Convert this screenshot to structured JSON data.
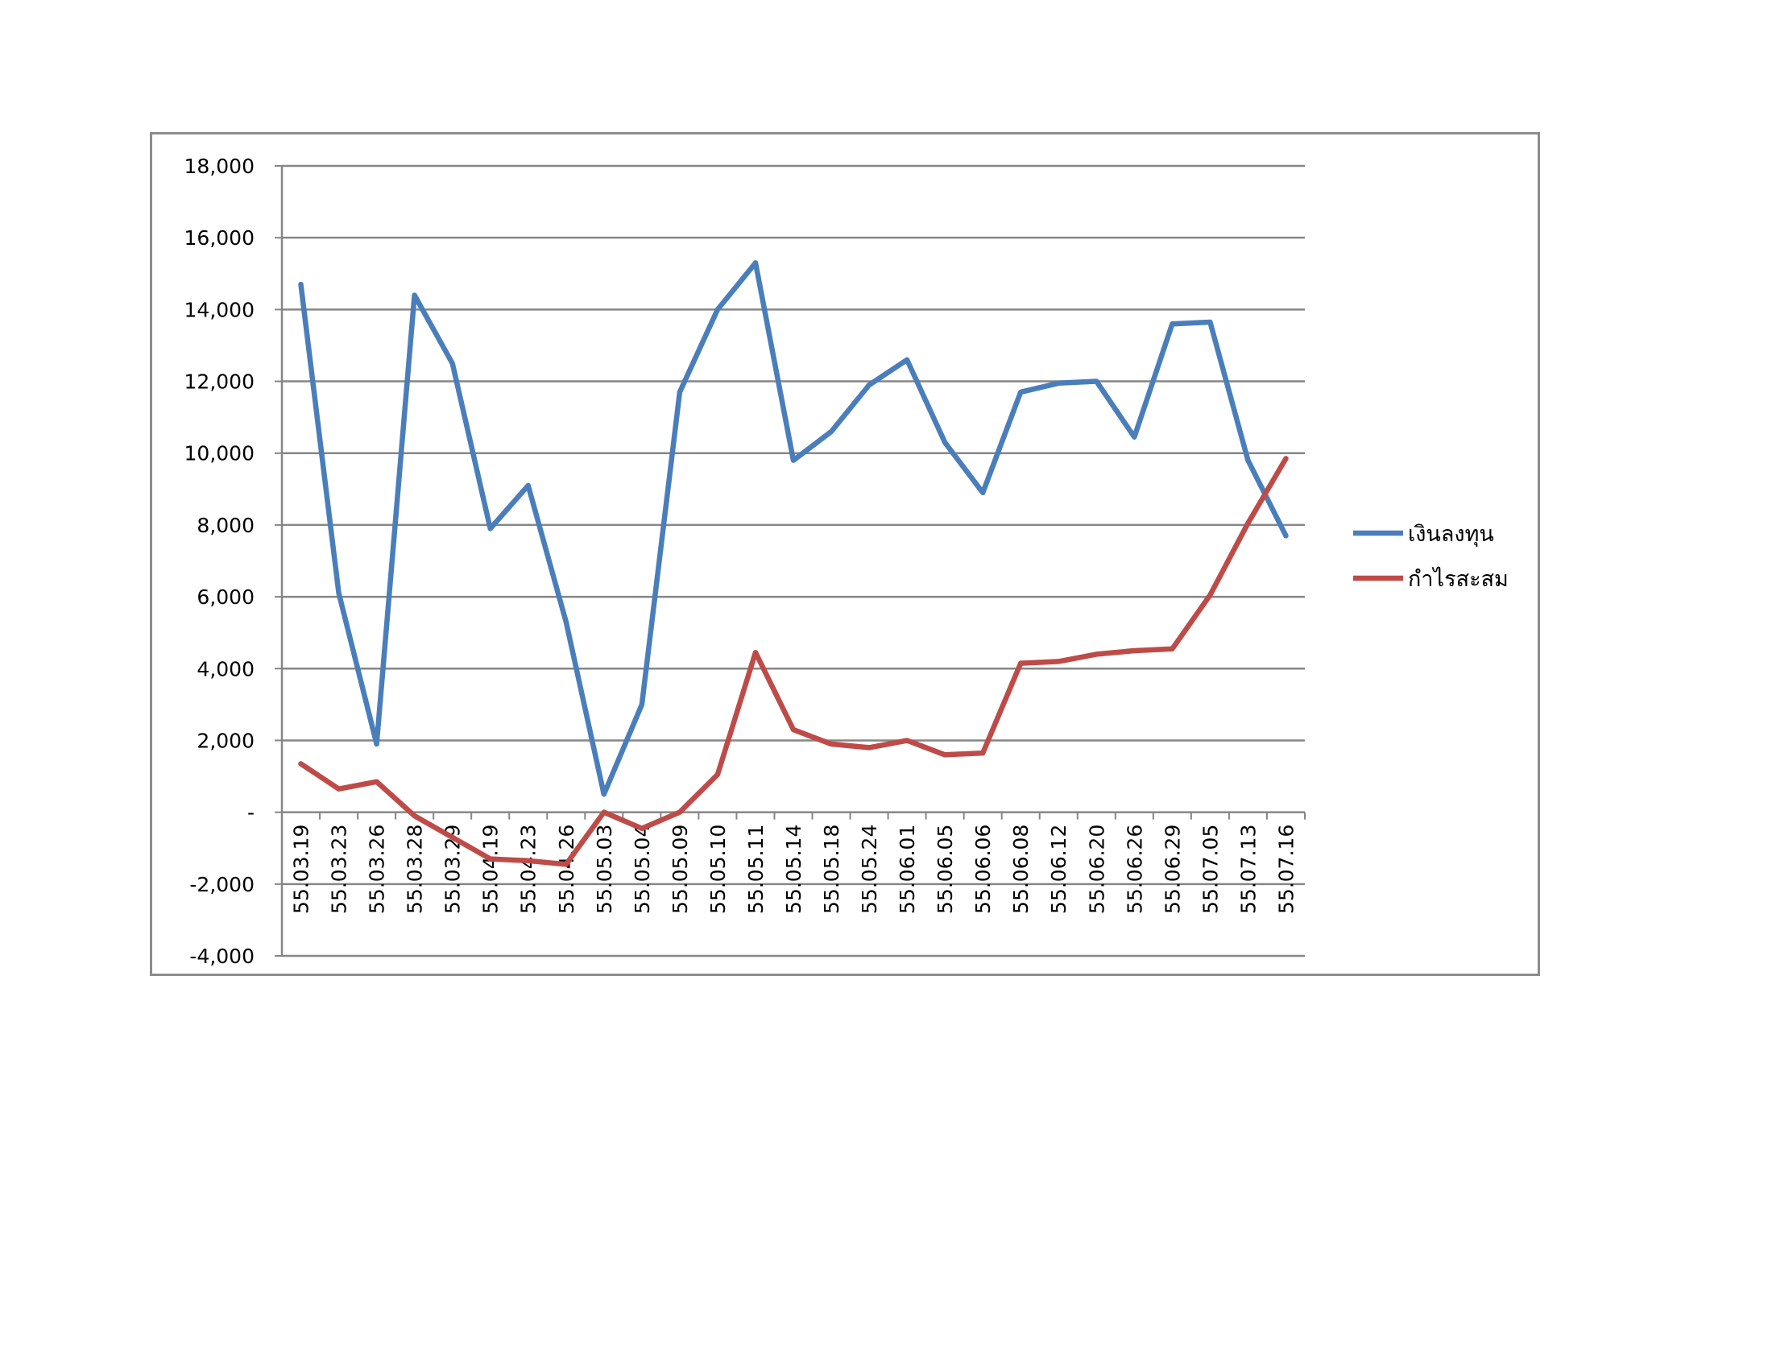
{
  "chart_data": {
    "type": "line",
    "title": "",
    "xlabel": "",
    "ylabel": "",
    "categories": [
      "55.03.19",
      "55.03.23",
      "55.03.26",
      "55.03.28",
      "55.03.29",
      "55.04.19",
      "55.04.23",
      "55.04.26",
      "55.05.03",
      "55.05.04",
      "55.05.09",
      "55.05.10",
      "55.05.11",
      "55.05.14",
      "55.05.18",
      "55.05.24",
      "55.06.01",
      "55.06.05",
      "55.06.06",
      "55.06.08",
      "55.06.12",
      "55.06.20",
      "55.06.26",
      "55.06.29",
      "55.07.05",
      "55.07.13",
      "55.07.16"
    ],
    "series": [
      {
        "name": "เงินลงทุน",
        "color": "#4a7ebb",
        "values": [
          14700,
          6100,
          1900,
          14400,
          12500,
          7900,
          9100,
          5300,
          500,
          3000,
          11700,
          14000,
          15300,
          9800,
          10600,
          11900,
          12600,
          10300,
          8900,
          11700,
          11950,
          12000,
          10450,
          13600,
          13650,
          9800,
          7700
        ]
      },
      {
        "name": "กำไรสะสม",
        "color": "#be4b48",
        "values": [
          1350,
          650,
          850,
          -100,
          -700,
          -1300,
          -1350,
          -1450,
          0,
          -450,
          0,
          1050,
          4450,
          2300,
          1900,
          1800,
          2000,
          1600,
          1650,
          4150,
          4200,
          4400,
          4500,
          4550,
          6050,
          8050,
          9850
        ]
      }
    ],
    "ylim": [
      -4000,
      18000
    ],
    "yticks": [
      18000,
      16000,
      14000,
      12000,
      10000,
      8000,
      6000,
      4000,
      2000,
      0,
      -2000,
      -4000
    ],
    "ytick_labels": [
      "18,000",
      "16,000",
      "14,000",
      "12,000",
      "10,000",
      "8,000",
      "6,000",
      "4,000",
      "2,000",
      "-",
      "-2,000",
      "-4,000"
    ],
    "grid": true,
    "legend_position": "right"
  }
}
